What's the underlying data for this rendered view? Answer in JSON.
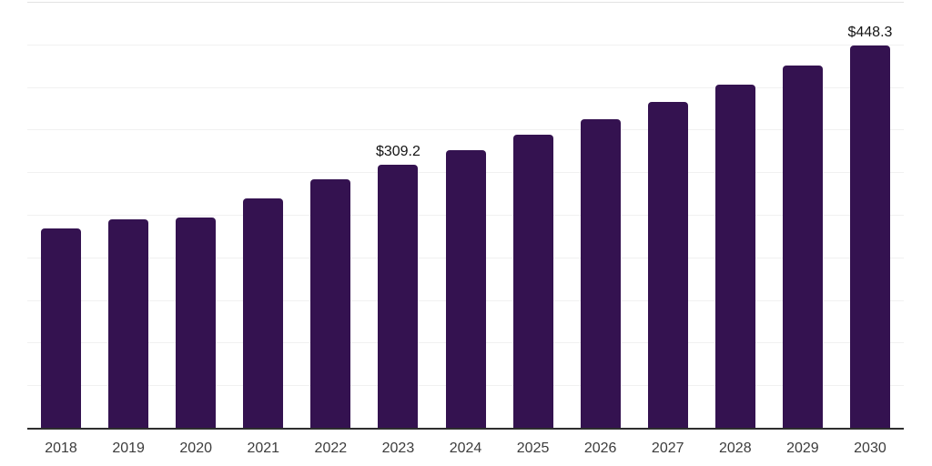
{
  "chart_data": {
    "type": "bar",
    "title": "",
    "xlabel": "",
    "ylabel": "",
    "categories": [
      "2018",
      "2019",
      "2020",
      "2021",
      "2022",
      "2023",
      "2024",
      "2025",
      "2026",
      "2027",
      "2028",
      "2029",
      "2030"
    ],
    "values": [
      234.3,
      244.7,
      246.5,
      268.9,
      292.0,
      309.2,
      326.1,
      343.9,
      362.6,
      382.4,
      403.2,
      425.2,
      448.3
    ],
    "value_labels": [
      "",
      "",
      "",
      "",
      "",
      "$309.2",
      "",
      "",
      "",
      "",
      "",
      "",
      "$448.3"
    ],
    "ylim": [
      0,
      500
    ],
    "gridline_step": 50,
    "grid": "horizontal-only",
    "y_tick_labels_visible": false,
    "legend_position": "none",
    "colors": {
      "bar": "#341250",
      "axis_line": "#2e2e2e",
      "gridline": "#f1f1f1",
      "gridline_top": "#e2e2e2",
      "value_label": "#141414",
      "tick_label": "#3c3c3c",
      "background": "#ffffff"
    }
  }
}
